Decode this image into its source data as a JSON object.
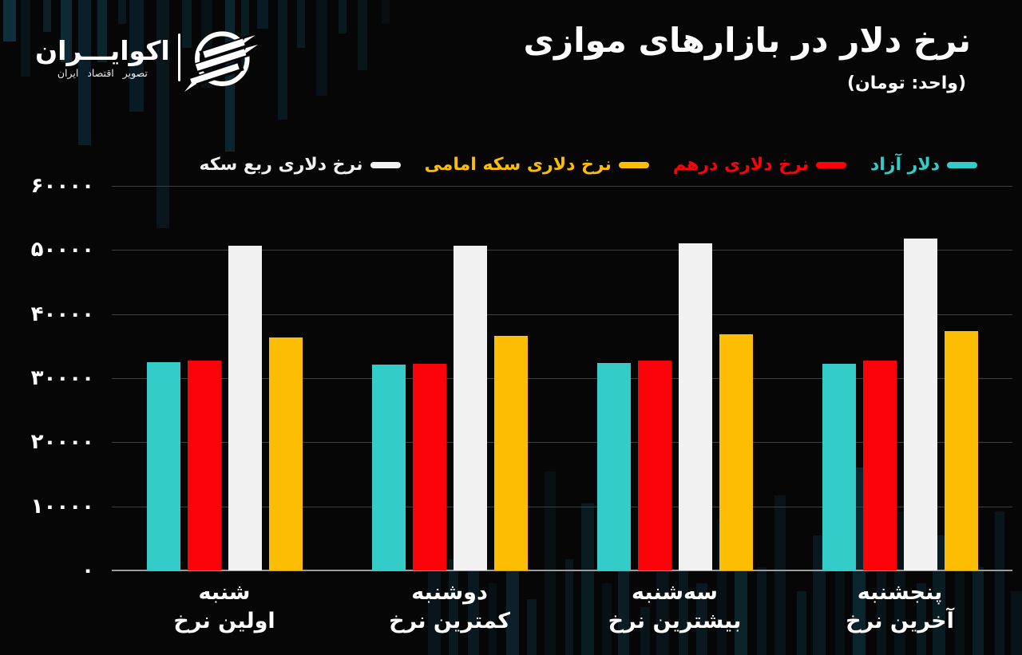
{
  "brand": {
    "name": "اکوایـــران",
    "tagline": "تصویر اقتصاد ایران"
  },
  "header": {
    "title": "نرخ دلار در بازارهای موازی",
    "subtitle": "(واحد: تومان)"
  },
  "chart_data": {
    "type": "bar",
    "title": "نرخ دلار در بازارهای موازی",
    "unit": "تومان",
    "direction": "rtl",
    "grid": true,
    "legend_position": "top",
    "categories": [
      {
        "day": "شنبه",
        "desc": "اولین نرخ"
      },
      {
        "day": "دوشنبه",
        "desc": "کمترین نرخ"
      },
      {
        "day": "سه‌شنبه",
        "desc": "بیشترین نرخ"
      },
      {
        "day": "پنجشنبه",
        "desc": "آخرین نرخ"
      }
    ],
    "series": [
      {
        "name": "دلار آزاد",
        "color": "#34ccc8",
        "values": [
          32500,
          32100,
          32400,
          32300
        ]
      },
      {
        "name": "نرخ دلاری درهم",
        "color": "#fb0309",
        "values": [
          32700,
          32200,
          32800,
          32750
        ]
      },
      {
        "name": "نرخ دلاری ربع سکه",
        "color": "#f1f1f1",
        "values": [
          50700,
          50700,
          51000,
          51800
        ]
      },
      {
        "name": "نرخ دلاری سکه امامی",
        "color": "#fcbd02",
        "values": [
          36400,
          36600,
          36900,
          37350
        ]
      }
    ],
    "legend_order": [
      0,
      1,
      3,
      2
    ],
    "y_axis": {
      "min": 0,
      "max": 60000,
      "step": 10000,
      "tick_labels": [
        "۰",
        "۱۰۰۰۰",
        "۲۰۰۰۰",
        "۳۰۰۰۰",
        "۴۰۰۰۰",
        "۵۰۰۰۰",
        "۶۰۰۰۰"
      ]
    }
  }
}
